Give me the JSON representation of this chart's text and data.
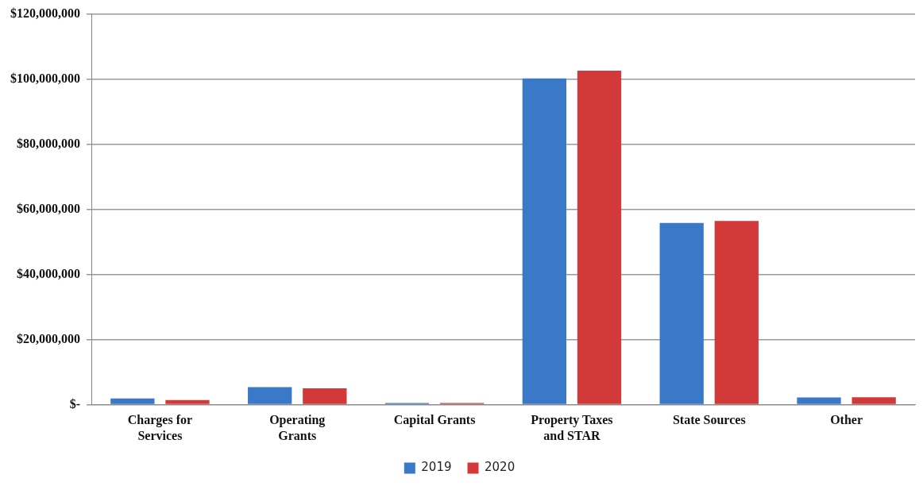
{
  "chart_data": {
    "type": "bar",
    "categories": [
      "Charges for\nServices",
      "Operating\nGrants",
      "Capital Grants",
      "Property Taxes\nand STAR",
      "State Sources",
      "Other"
    ],
    "series": [
      {
        "name": "2019",
        "color": "#3a78c8",
        "values": [
          1900000,
          5400000,
          500000,
          100200000,
          55800000,
          2200000
        ]
      },
      {
        "name": "2020",
        "color": "#d23a3a",
        "values": [
          1400000,
          5000000,
          500000,
          102600000,
          56400000,
          2300000
        ]
      }
    ],
    "ylim": [
      0,
      120000000
    ],
    "yticks": [
      {
        "value": 0,
        "label": "$-"
      },
      {
        "value": 20000000,
        "label": "$20,000,000"
      },
      {
        "value": 40000000,
        "label": "$40,000,000"
      },
      {
        "value": 60000000,
        "label": "$60,000,000"
      },
      {
        "value": 80000000,
        "label": "$80,000,000"
      },
      {
        "value": 100000000,
        "label": "$100,000,000"
      },
      {
        "value": 120000000,
        "label": "$120,000,000"
      }
    ],
    "grid": "y",
    "legend": "bottom"
  }
}
